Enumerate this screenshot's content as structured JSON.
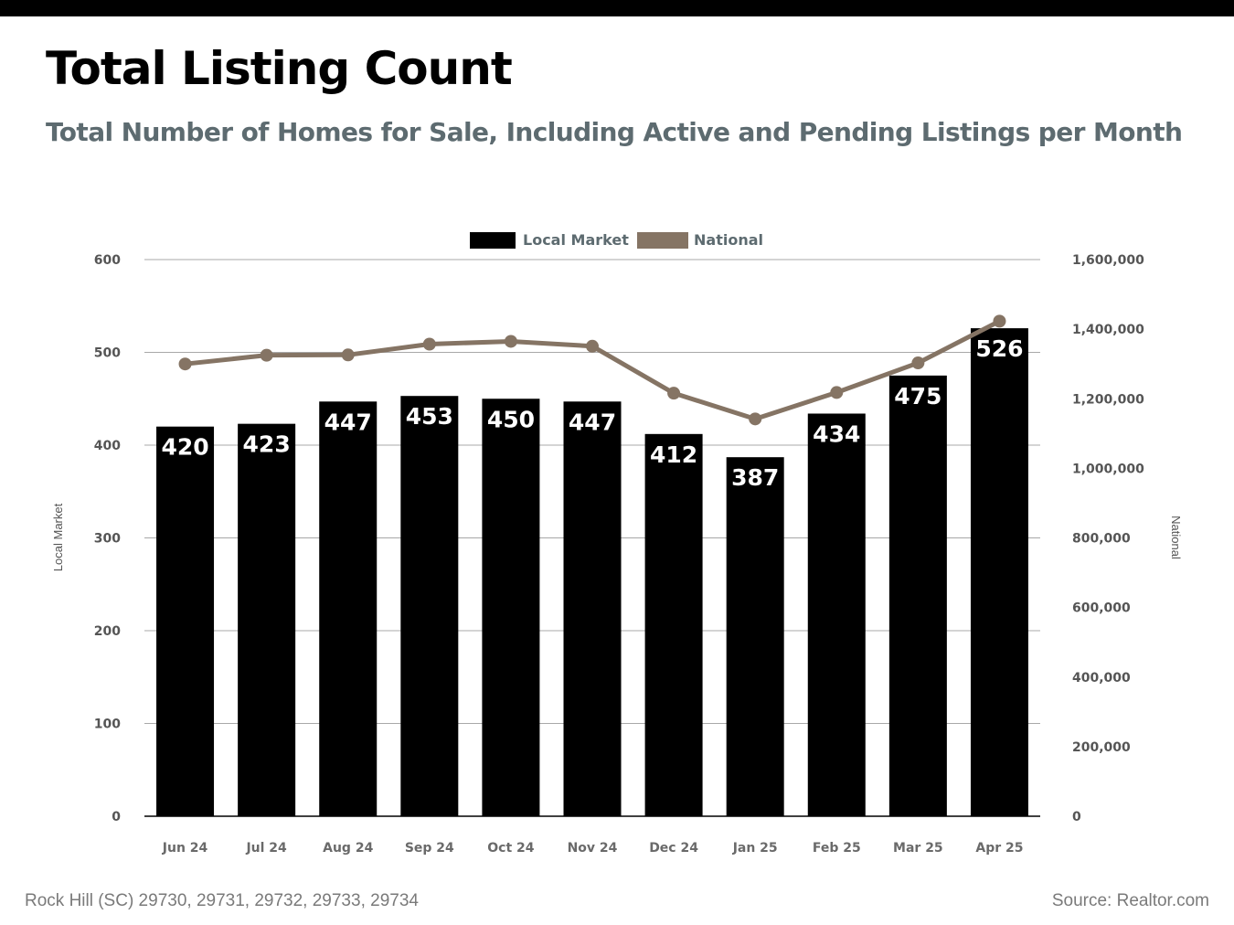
{
  "header": {
    "title": "Total Listing Count",
    "subtitle": "Total Number of Homes for Sale, Including Active and Pending Listings per Month"
  },
  "footer": {
    "location": "Rock Hill (SC) 29730, 29731, 29732, 29733, 29734",
    "source": "Source: Realtor.com"
  },
  "colors": {
    "local": "#000000",
    "national": "#857464",
    "grid": "#a8a8a8",
    "subtitle": "#5d6b70"
  },
  "chart_data": {
    "type": "bar",
    "categories": [
      "Jun 24",
      "Jul 24",
      "Aug 24",
      "Sep 24",
      "Oct 24",
      "Nov 24",
      "Dec 24",
      "Jan 25",
      "Feb 25",
      "Mar 25",
      "Apr 25"
    ],
    "series": [
      {
        "name": "Local Market",
        "type": "bar",
        "axis": "left",
        "values": [
          420,
          423,
          447,
          453,
          450,
          447,
          412,
          387,
          434,
          475,
          526
        ]
      },
      {
        "name": "National",
        "type": "line",
        "axis": "right",
        "values": [
          1300000,
          1325000,
          1326000,
          1357000,
          1365000,
          1351000,
          1216000,
          1142000,
          1218000,
          1303000,
          1423000
        ]
      }
    ],
    "ylabel": "Local Market",
    "y2label": "National",
    "ylim": [
      0,
      600
    ],
    "y2lim": [
      0,
      1600000
    ],
    "yticks": [
      "0",
      "100",
      "200",
      "300",
      "400",
      "500",
      "600"
    ],
    "y2ticks": [
      "0",
      "200,000",
      "400,000",
      "600,000",
      "800,000",
      "1,000,000",
      "1,200,000",
      "1,400,000",
      "1,600,000"
    ],
    "legend": [
      "Local Market",
      "National"
    ],
    "legend_position": "top-center",
    "grid": true
  }
}
